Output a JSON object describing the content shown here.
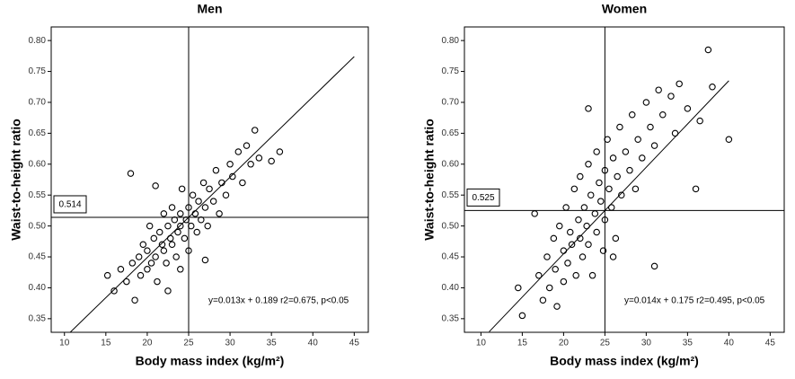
{
  "chart_data": [
    {
      "type": "scatter",
      "title": "Men",
      "xlabel": "Body mass index (kg/m²)",
      "ylabel": "Waist-to-height ratio",
      "xlim": [
        8.4,
        46.7
      ],
      "ylim": [
        0.328,
        0.822
      ],
      "xticks": [
        10,
        15,
        20,
        25,
        30,
        35,
        40,
        45
      ],
      "yticks": [
        0.35,
        {
          "value": 0.4,
          "label": "0.40"
        },
        0.45,
        {
          "value": 0.5,
          "label": "0.50"
        },
        0.55,
        {
          "value": 0.6,
          "label": "0.60"
        },
        0.65,
        {
          "value": 0.7,
          "label": "0.70"
        },
        0.75,
        {
          "value": 0.8,
          "label": "0.80"
        }
      ],
      "vline": 25,
      "hline": 0.514,
      "fit": {
        "slope": 0.013,
        "intercept": 0.189,
        "x_range": [
          10.5,
          45
        ]
      },
      "annotation": "y=0.013x + 0.189 r2=0.675, p<0.05",
      "color": "#000000",
      "x": [
        15.2,
        16,
        16.8,
        17.5,
        18,
        18.2,
        18.5,
        19,
        19.2,
        19.5,
        20,
        20,
        20.3,
        20.5,
        20.8,
        21,
        21.2,
        21.5,
        21.8,
        22,
        22,
        22.3,
        22.5,
        22.8,
        23,
        23,
        23.3,
        23.5,
        23.7,
        24,
        24,
        24.2,
        24.5,
        24.7,
        25,
        25,
        25.3,
        25.5,
        25.8,
        26,
        26.2,
        26.5,
        26.8,
        27,
        27.3,
        27.5,
        28,
        28.3,
        28.7,
        29,
        29.5,
        30,
        30.3,
        31,
        31.5,
        32,
        32.5,
        33,
        33.5,
        35,
        36,
        22.5,
        24,
        21,
        27
      ],
      "y": [
        0.42,
        0.395,
        0.43,
        0.41,
        0.585,
        0.44,
        0.38,
        0.45,
        0.42,
        0.47,
        0.43,
        0.46,
        0.5,
        0.44,
        0.48,
        0.45,
        0.41,
        0.49,
        0.47,
        0.52,
        0.46,
        0.44,
        0.5,
        0.48,
        0.53,
        0.47,
        0.51,
        0.45,
        0.49,
        0.52,
        0.5,
        0.56,
        0.48,
        0.51,
        0.53,
        0.46,
        0.5,
        0.55,
        0.52,
        0.49,
        0.54,
        0.51,
        0.57,
        0.53,
        0.5,
        0.56,
        0.54,
        0.59,
        0.52,
        0.57,
        0.55,
        0.6,
        0.58,
        0.62,
        0.57,
        0.63,
        0.6,
        0.655,
        0.61,
        0.605,
        0.62,
        0.395,
        0.43,
        0.565,
        0.445
      ]
    },
    {
      "type": "scatter",
      "title": "Women",
      "xlabel": "Body mass index (kg/m²)",
      "ylabel": "Waist-to-height ratio",
      "xlim": [
        8.0,
        46.7
      ],
      "ylim": [
        0.328,
        0.822
      ],
      "xticks": [
        10,
        15,
        20,
        25,
        30,
        35,
        40,
        45
      ],
      "yticks": [
        0.35,
        {
          "value": 0.4,
          "label": "0.40"
        },
        0.45,
        {
          "value": 0.5,
          "label": "0.50"
        },
        0.55,
        {
          "value": 0.6,
          "label": "0.60"
        },
        0.65,
        {
          "value": 0.7,
          "label": "0.70"
        },
        0.75,
        {
          "value": 0.8,
          "label": "0.80"
        }
      ],
      "vline": 25,
      "hline": 0.525,
      "fit": {
        "slope": 0.014,
        "intercept": 0.175,
        "x_range": [
          11,
          40
        ]
      },
      "annotation": "y=0.014x + 0.175 r2=0.495, p<0.05",
      "color": "#000000",
      "x": [
        14.5,
        15,
        16.5,
        17,
        17.5,
        18,
        18.3,
        18.8,
        19,
        19.2,
        19.5,
        20,
        20,
        20.3,
        20.5,
        20.8,
        21,
        21.3,
        21.5,
        21.8,
        22,
        22,
        22.3,
        22.5,
        22.8,
        23,
        23,
        23.3,
        23.5,
        23.8,
        24,
        24,
        24.3,
        24.5,
        24.8,
        25,
        25,
        25.3,
        25.5,
        25.8,
        26,
        26.3,
        26.5,
        26.8,
        27,
        27.5,
        28,
        28.3,
        28.7,
        29,
        29.5,
        30,
        30.5,
        31,
        31.5,
        31,
        32,
        33,
        33.5,
        34,
        35,
        36,
        36.5,
        37.5,
        38,
        40,
        23,
        26
      ],
      "y": [
        0.4,
        0.355,
        0.52,
        0.42,
        0.38,
        0.45,
        0.4,
        0.48,
        0.43,
        0.37,
        0.5,
        0.46,
        0.41,
        0.53,
        0.44,
        0.49,
        0.47,
        0.56,
        0.42,
        0.51,
        0.48,
        0.58,
        0.45,
        0.53,
        0.5,
        0.47,
        0.6,
        0.55,
        0.42,
        0.52,
        0.49,
        0.62,
        0.57,
        0.54,
        0.46,
        0.59,
        0.51,
        0.64,
        0.56,
        0.53,
        0.61,
        0.48,
        0.58,
        0.66,
        0.55,
        0.62,
        0.59,
        0.68,
        0.56,
        0.64,
        0.61,
        0.7,
        0.66,
        0.63,
        0.72,
        0.435,
        0.68,
        0.71,
        0.65,
        0.73,
        0.69,
        0.56,
        0.67,
        0.785,
        0.725,
        0.64,
        0.69,
        0.45
      ]
    }
  ]
}
